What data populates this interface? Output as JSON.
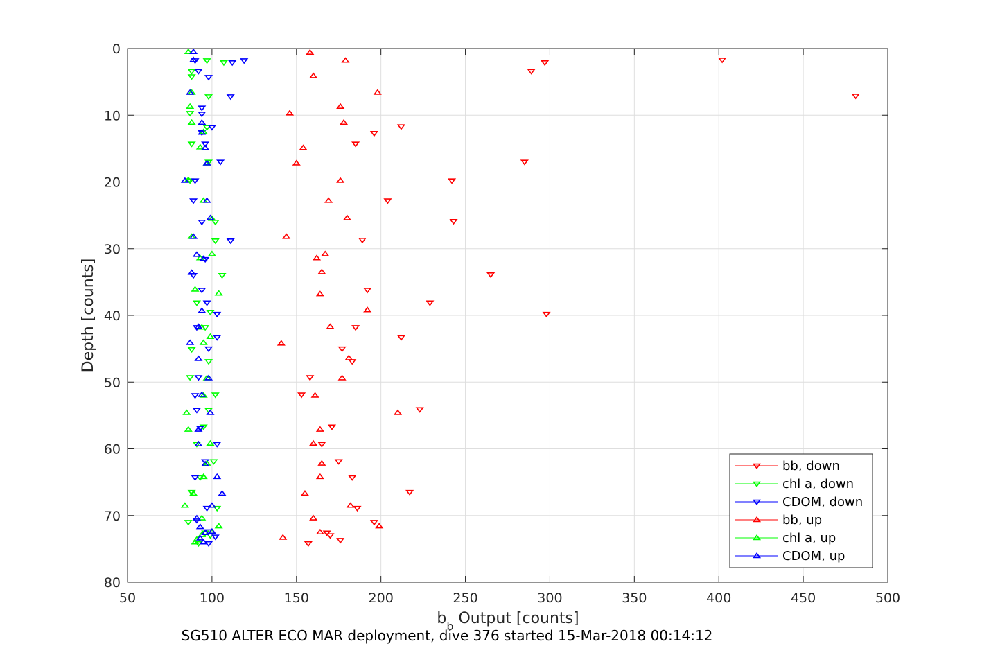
{
  "chart_data": {
    "type": "scatter",
    "xlabel_main": "b",
    "xlabel_sub": "b",
    "xlabel_rest": " Output [counts]",
    "ylabel": "Depth [counts]",
    "caption": "SG510 ALTER ECO MAR deployment, dive 376 started 15-Mar-2018 00:14:12",
    "xlim": [
      50,
      500
    ],
    "ylim": [
      0,
      80
    ],
    "y_reversed": true,
    "grid": true,
    "legend_position": "bottom-right",
    "xticks": [
      50,
      100,
      150,
      200,
      250,
      300,
      350,
      400,
      450,
      500
    ],
    "yticks": [
      0,
      10,
      20,
      30,
      40,
      50,
      60,
      70,
      80
    ],
    "series": [
      {
        "name": "bb, down",
        "color": "#ff0000",
        "marker": "triangle-down",
        "points": [
          [
            402,
            1.7
          ],
          [
            297,
            2.1
          ],
          [
            289,
            3.4
          ],
          [
            481,
            7.1
          ],
          [
            212,
            11.7
          ],
          [
            196,
            12.7
          ],
          [
            185,
            14.3
          ],
          [
            285,
            17.0
          ],
          [
            242,
            19.8
          ],
          [
            204,
            22.8
          ],
          [
            243,
            25.9
          ],
          [
            189,
            28.7
          ],
          [
            265,
            33.9
          ],
          [
            192,
            36.2
          ],
          [
            229,
            38.1
          ],
          [
            298,
            39.8
          ],
          [
            185,
            41.8
          ],
          [
            212,
            43.3
          ],
          [
            177,
            45.0
          ],
          [
            183,
            46.9
          ],
          [
            158,
            49.3
          ],
          [
            153,
            51.9
          ],
          [
            223,
            54.1
          ],
          [
            171,
            56.7
          ],
          [
            165,
            59.3
          ],
          [
            175,
            61.9
          ],
          [
            183,
            64.3
          ],
          [
            217,
            66.5
          ],
          [
            186,
            68.9
          ],
          [
            196,
            71.0
          ],
          [
            168,
            72.6
          ],
          [
            170,
            73.0
          ],
          [
            176,
            73.7
          ],
          [
            157,
            74.2
          ]
        ]
      },
      {
        "name": "chl a, down",
        "color": "#00ff00",
        "marker": "triangle-down",
        "points": [
          [
            97,
            1.8
          ],
          [
            107,
            2.1
          ],
          [
            88,
            3.4
          ],
          [
            88,
            4.2
          ],
          [
            98,
            7.2
          ],
          [
            87,
            9.7
          ],
          [
            97,
            11.8
          ],
          [
            88,
            14.3
          ],
          [
            98,
            17.0
          ],
          [
            87,
            19.8
          ],
          [
            102,
            26.0
          ],
          [
            102,
            28.8
          ],
          [
            106,
            34.0
          ],
          [
            91,
            38.1
          ],
          [
            99,
            39.5
          ],
          [
            96,
            41.8
          ],
          [
            88,
            45.1
          ],
          [
            98,
            46.9
          ],
          [
            87,
            49.3
          ],
          [
            102,
            51.9
          ],
          [
            98,
            54.2
          ],
          [
            95,
            56.7
          ],
          [
            91,
            59.3
          ],
          [
            101,
            61.9
          ],
          [
            93,
            64.3
          ],
          [
            88,
            66.5
          ],
          [
            103,
            68.9
          ],
          [
            86,
            71.0
          ],
          [
            96,
            72.6
          ],
          [
            99,
            73.0
          ],
          [
            92,
            74.2
          ]
        ]
      },
      {
        "name": "CDOM, down",
        "color": "#0000ff",
        "marker": "triangle-down",
        "points": [
          [
            119,
            1.8
          ],
          [
            112,
            2.1
          ],
          [
            90,
            1.8
          ],
          [
            92,
            3.4
          ],
          [
            98,
            4.3
          ],
          [
            111,
            7.2
          ],
          [
            94,
            8.9
          ],
          [
            94,
            9.8
          ],
          [
            100,
            11.8
          ],
          [
            94,
            12.6
          ],
          [
            96,
            14.3
          ],
          [
            105,
            17.0
          ],
          [
            90,
            19.8
          ],
          [
            89,
            22.8
          ],
          [
            94,
            26.0
          ],
          [
            111,
            28.8
          ],
          [
            96,
            31.6
          ],
          [
            89,
            34.0
          ],
          [
            94,
            36.2
          ],
          [
            97,
            38.1
          ],
          [
            103,
            39.8
          ],
          [
            91,
            41.8
          ],
          [
            103,
            43.3
          ],
          [
            98,
            45.0
          ],
          [
            92,
            49.3
          ],
          [
            90,
            52.0
          ],
          [
            91,
            54.2
          ],
          [
            93,
            56.9
          ],
          [
            103,
            59.3
          ],
          [
            96,
            61.9
          ],
          [
            90,
            64.3
          ],
          [
            97,
            68.9
          ],
          [
            91,
            70.7
          ],
          [
            98,
            72.4
          ],
          [
            102,
            73.2
          ],
          [
            98,
            74.2
          ]
        ]
      },
      {
        "name": "bb, up",
        "color": "#ff0000",
        "marker": "triangle-up",
        "points": [
          [
            158,
            0.6
          ],
          [
            179,
            1.8
          ],
          [
            160,
            4.1
          ],
          [
            198,
            6.6
          ],
          [
            176,
            8.7
          ],
          [
            146,
            9.7
          ],
          [
            178,
            11.1
          ],
          [
            154,
            14.9
          ],
          [
            150,
            17.2
          ],
          [
            176,
            19.8
          ],
          [
            169,
            22.8
          ],
          [
            180,
            25.4
          ],
          [
            144,
            28.2
          ],
          [
            167,
            30.8
          ],
          [
            162,
            31.4
          ],
          [
            165,
            33.5
          ],
          [
            164,
            36.8
          ],
          [
            192,
            39.2
          ],
          [
            170,
            41.7
          ],
          [
            141,
            44.2
          ],
          [
            181,
            46.4
          ],
          [
            177,
            49.4
          ],
          [
            161,
            52.0
          ],
          [
            210,
            54.6
          ],
          [
            164,
            57.1
          ],
          [
            160,
            59.2
          ],
          [
            165,
            62.2
          ],
          [
            164,
            64.2
          ],
          [
            155,
            66.7
          ],
          [
            182,
            68.5
          ],
          [
            160,
            70.4
          ],
          [
            199,
            71.6
          ],
          [
            164,
            72.5
          ],
          [
            142,
            73.3
          ]
        ]
      },
      {
        "name": "chl a, up",
        "color": "#00ff00",
        "marker": "triangle-up",
        "points": [
          [
            86,
            0.5
          ],
          [
            88,
            6.6
          ],
          [
            87,
            8.7
          ],
          [
            88,
            11.1
          ],
          [
            95,
            12.5
          ],
          [
            93,
            14.8
          ],
          [
            97,
            17.2
          ],
          [
            86,
            19.7
          ],
          [
            95,
            22.8
          ],
          [
            100,
            25.5
          ],
          [
            88,
            28.2
          ],
          [
            100,
            30.8
          ],
          [
            93,
            31.4
          ],
          [
            90,
            36.1
          ],
          [
            104,
            36.7
          ],
          [
            94,
            41.8
          ],
          [
            99,
            43.2
          ],
          [
            95,
            44.1
          ],
          [
            97,
            49.4
          ],
          [
            95,
            52.0
          ],
          [
            85,
            54.6
          ],
          [
            86,
            57.1
          ],
          [
            99,
            59.2
          ],
          [
            97,
            62.2
          ],
          [
            95,
            64.2
          ],
          [
            89,
            66.7
          ],
          [
            84,
            68.5
          ],
          [
            94,
            70.4
          ],
          [
            104,
            71.6
          ],
          [
            100,
            72.5
          ],
          [
            94,
            72.9
          ],
          [
            91,
            73.6
          ],
          [
            90,
            74.0
          ]
        ]
      },
      {
        "name": "CDOM, up",
        "color": "#0000ff",
        "marker": "triangle-up",
        "points": [
          [
            89,
            0.5
          ],
          [
            89,
            1.7
          ],
          [
            87,
            6.6
          ],
          [
            94,
            11.1
          ],
          [
            94,
            12.6
          ],
          [
            96,
            14.9
          ],
          [
            97,
            17.2
          ],
          [
            84,
            19.8
          ],
          [
            97,
            22.8
          ],
          [
            99,
            25.4
          ],
          [
            89,
            28.2
          ],
          [
            91,
            30.9
          ],
          [
            95,
            31.5
          ],
          [
            88,
            33.6
          ],
          [
            94,
            39.3
          ],
          [
            92,
            41.7
          ],
          [
            87,
            44.1
          ],
          [
            92,
            46.5
          ],
          [
            98,
            49.4
          ],
          [
            94,
            51.9
          ],
          [
            99,
            54.6
          ],
          [
            92,
            57.1
          ],
          [
            92,
            59.3
          ],
          [
            96,
            62.3
          ],
          [
            103,
            64.2
          ],
          [
            106,
            66.7
          ],
          [
            100,
            68.5
          ],
          [
            91,
            70.4
          ],
          [
            93,
            71.7
          ],
          [
            96,
            72.6
          ],
          [
            100,
            72.4
          ],
          [
            93,
            73.4
          ],
          [
            95,
            74.0
          ]
        ]
      }
    ]
  }
}
